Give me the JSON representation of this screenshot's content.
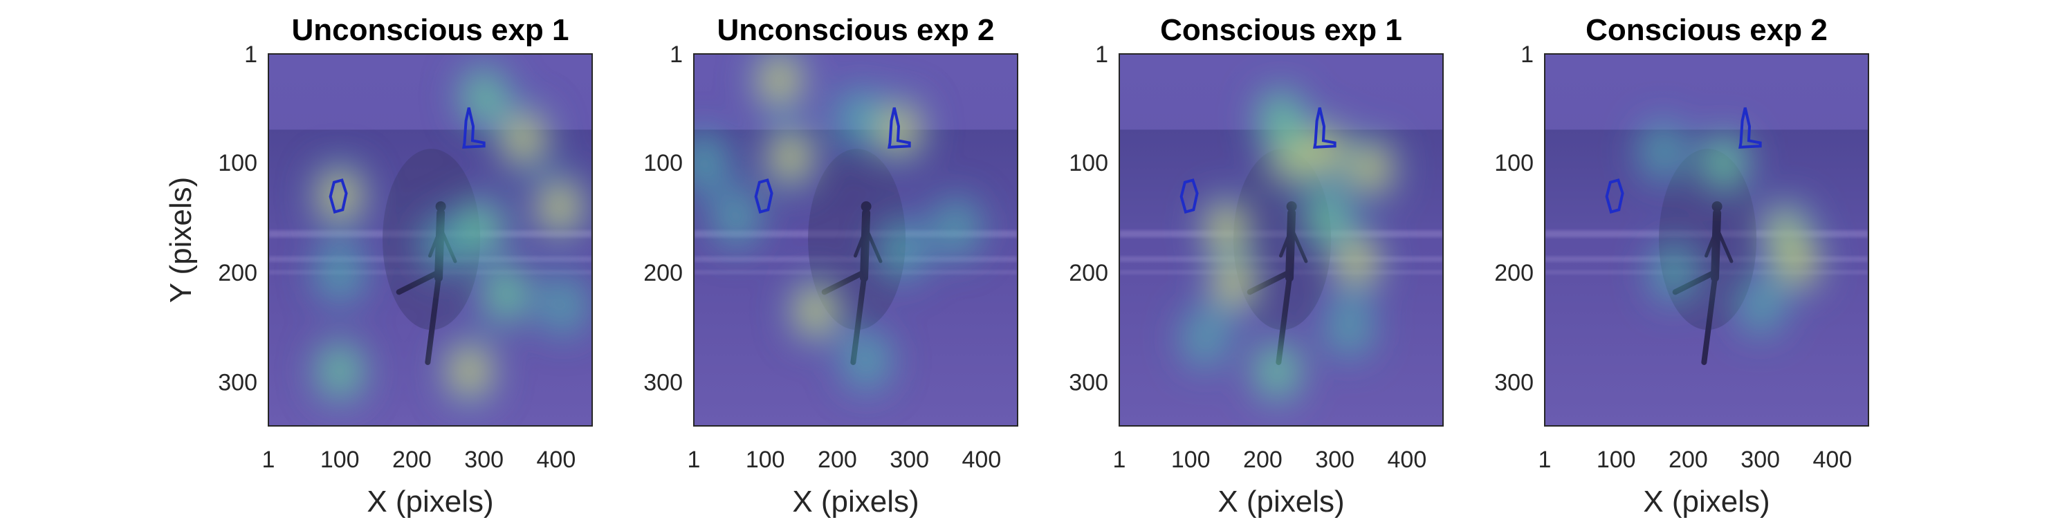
{
  "chart_data": [
    {
      "type": "heatmap",
      "title": "Unconscious exp 1",
      "xlabel": "X (pixels)",
      "ylabel": "Y (pixels)",
      "xticks": [
        "1",
        "100",
        "200",
        "300",
        "400"
      ],
      "yticks": [
        "1",
        "100",
        "200",
        "300"
      ],
      "xlim": [
        1,
        450
      ],
      "ylim": [
        1,
        340
      ],
      "hotspots": [
        {
          "x": 100,
          "y": 130,
          "intensity": 0.9
        },
        {
          "x": 355,
          "y": 78,
          "intensity": 0.9
        },
        {
          "x": 405,
          "y": 140,
          "intensity": 0.85
        },
        {
          "x": 300,
          "y": 40,
          "intensity": 0.45
        },
        {
          "x": 295,
          "y": 160,
          "intensity": 0.45
        },
        {
          "x": 330,
          "y": 220,
          "intensity": 0.5
        },
        {
          "x": 280,
          "y": 290,
          "intensity": 0.9
        },
        {
          "x": 100,
          "y": 200,
          "intensity": 0.4
        },
        {
          "x": 100,
          "y": 290,
          "intensity": 0.45
        },
        {
          "x": 410,
          "y": 230,
          "intensity": 0.35
        },
        {
          "x": 245,
          "y": 175,
          "intensity": 0.3
        }
      ]
    },
    {
      "type": "heatmap",
      "title": "Unconscious exp 2",
      "xlabel": "X (pixels)",
      "ylabel": "",
      "xticks": [
        "1",
        "100",
        "200",
        "300",
        "400"
      ],
      "yticks": [
        "1",
        "100",
        "200",
        "300"
      ],
      "xlim": [
        1,
        450
      ],
      "ylim": [
        1,
        340
      ],
      "hotspots": [
        {
          "x": 120,
          "y": 25,
          "intensity": 0.95
        },
        {
          "x": 135,
          "y": 95,
          "intensity": 0.85
        },
        {
          "x": 285,
          "y": 70,
          "intensity": 0.95
        },
        {
          "x": 230,
          "y": 60,
          "intensity": 0.4
        },
        {
          "x": 15,
          "y": 100,
          "intensity": 0.4
        },
        {
          "x": 170,
          "y": 235,
          "intensity": 0.8
        },
        {
          "x": 240,
          "y": 280,
          "intensity": 0.4
        },
        {
          "x": 365,
          "y": 160,
          "intensity": 0.35
        },
        {
          "x": 290,
          "y": 180,
          "intensity": 0.4
        },
        {
          "x": 60,
          "y": 150,
          "intensity": 0.3
        }
      ]
    },
    {
      "type": "heatmap",
      "title": "Conscious exp 1",
      "xlabel": "X (pixels)",
      "ylabel": "",
      "xticks": [
        "1",
        "100",
        "200",
        "300",
        "400"
      ],
      "yticks": [
        "1",
        "100",
        "200",
        "300"
      ],
      "xlim": [
        1,
        450
      ],
      "ylim": [
        1,
        340
      ],
      "hotspots": [
        {
          "x": 160,
          "y": 210,
          "intensity": 0.95
        },
        {
          "x": 150,
          "y": 160,
          "intensity": 0.6
        },
        {
          "x": 240,
          "y": 95,
          "intensity": 0.8
        },
        {
          "x": 225,
          "y": 60,
          "intensity": 0.5
        },
        {
          "x": 285,
          "y": 90,
          "intensity": 0.6
        },
        {
          "x": 350,
          "y": 105,
          "intensity": 0.65
        },
        {
          "x": 330,
          "y": 190,
          "intensity": 0.85
        },
        {
          "x": 290,
          "y": 150,
          "intensity": 0.45
        },
        {
          "x": 220,
          "y": 290,
          "intensity": 0.45
        },
        {
          "x": 320,
          "y": 250,
          "intensity": 0.35
        },
        {
          "x": 120,
          "y": 260,
          "intensity": 0.3
        }
      ]
    },
    {
      "type": "heatmap",
      "title": "Conscious exp 2",
      "xlabel": "X (pixels)",
      "ylabel": "",
      "xticks": [
        "1",
        "100",
        "200",
        "300",
        "400"
      ],
      "yticks": [
        "1",
        "100",
        "200",
        "300"
      ],
      "xlim": [
        1,
        450
      ],
      "ylim": [
        1,
        340
      ],
      "hotspots": [
        {
          "x": 335,
          "y": 165,
          "intensity": 0.95
        },
        {
          "x": 350,
          "y": 190,
          "intensity": 0.6
        },
        {
          "x": 250,
          "y": 100,
          "intensity": 0.45
        },
        {
          "x": 165,
          "y": 90,
          "intensity": 0.3
        },
        {
          "x": 180,
          "y": 200,
          "intensity": 0.35
        },
        {
          "x": 300,
          "y": 230,
          "intensity": 0.3
        }
      ]
    }
  ]
}
